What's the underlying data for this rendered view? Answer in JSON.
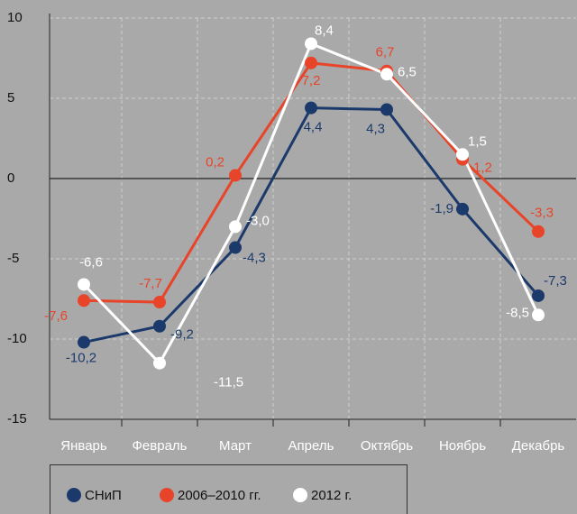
{
  "chart_data": {
    "type": "line",
    "categories": [
      "Январь",
      "Февраль",
      "Март",
      "Апрель",
      "Октябрь",
      "Ноябрь",
      "Декабрь"
    ],
    "series": [
      {
        "name": "СНиП",
        "color": "#1b3a6b",
        "values": [
          -10.2,
          -9.2,
          -4.3,
          4.4,
          4.3,
          -1.9,
          -7.3
        ],
        "value_labels": [
          "-10,2",
          "-9,2",
          "-4,3",
          "4,4",
          "4,3",
          "-1,9",
          "-7,3"
        ]
      },
      {
        "name": "2006–2010 гг.",
        "color": "#e8442a",
        "values": [
          -7.6,
          -7.7,
          0.2,
          7.2,
          6.7,
          1.2,
          -3.3
        ],
        "value_labels": [
          "-7,6",
          "-7,7",
          "0,2",
          "7,2",
          "6,7",
          "1,2",
          "-3,3"
        ]
      },
      {
        "name": "2012 г.",
        "color": "#ffffff",
        "values": [
          -6.6,
          -11.5,
          -3.0,
          8.4,
          6.5,
          1.5,
          -8.5
        ],
        "value_labels": [
          "-6,6",
          "-11,5",
          "-3,0",
          "8,4",
          "6,5",
          "1,5",
          "-8,5"
        ]
      }
    ],
    "ylim": [
      -15,
      10
    ],
    "yticks": [
      -15,
      -10,
      -5,
      0,
      5,
      10
    ],
    "grid": true,
    "legend": "bottom-left"
  }
}
